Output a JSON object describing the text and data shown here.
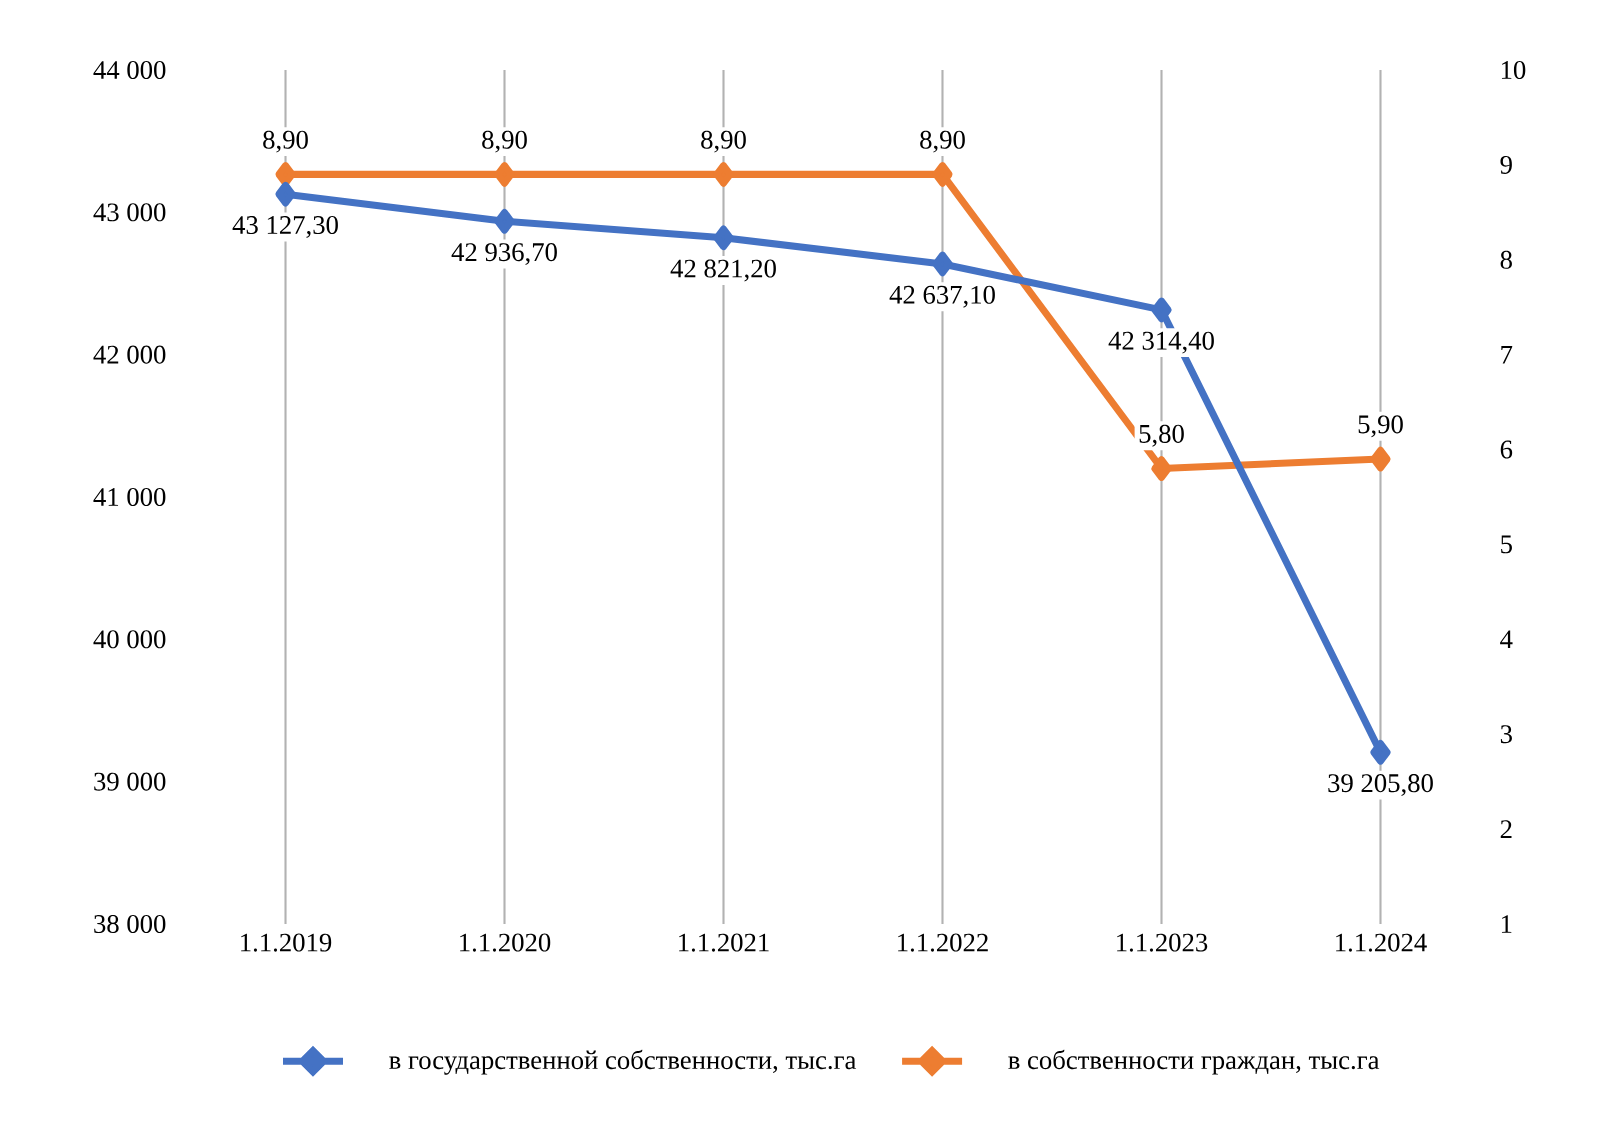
{
  "chart_data": {
    "type": "line",
    "categories": [
      "1.1.2019",
      "1.1.2020",
      "1.1.2021",
      "1.1.2022",
      "1.1.2023",
      "1.1.2024"
    ],
    "series": [
      {
        "name": "в государственной собственности, тыс.га",
        "color": "#4472c4",
        "values": [
          43127.3,
          42936.7,
          42821.2,
          42637.1,
          42314.4,
          39205.8
        ],
        "value_labels": [
          "43 127,30",
          "42 936,70",
          "42 821,20",
          "42 637,10",
          "42 314,40",
          "39 205,80"
        ]
      },
      {
        "name": "в собственности граждан, тыс.га",
        "color": "#ed7d31",
        "axis": "y2",
        "values": [
          8.9,
          8.9,
          8.9,
          8.9,
          5.8,
          5.9
        ],
        "value_labels": [
          "8,90",
          "8,90",
          "8,90",
          "8,90",
          "5,80",
          "5,90"
        ]
      }
    ],
    "ylim": [
      38000,
      44000
    ],
    "yticks": [
      {
        "value": 38000,
        "label": "38 000"
      },
      {
        "value": 39000,
        "label": "39 000"
      },
      {
        "value": 40000,
        "label": "40 000"
      },
      {
        "value": 41000,
        "label": "41 000"
      },
      {
        "value": 42000,
        "label": "42 000"
      },
      {
        "value": 43000,
        "label": "43 000"
      },
      {
        "value": 44000,
        "label": "44 000"
      }
    ],
    "y2lim": [
      1,
      10
    ],
    "y2ticks": [
      1,
      2,
      3,
      4,
      5,
      6,
      7,
      8,
      9,
      10
    ],
    "grid": "x",
    "legend": "bottom",
    "marker": "diamond",
    "line_style": "solid"
  }
}
